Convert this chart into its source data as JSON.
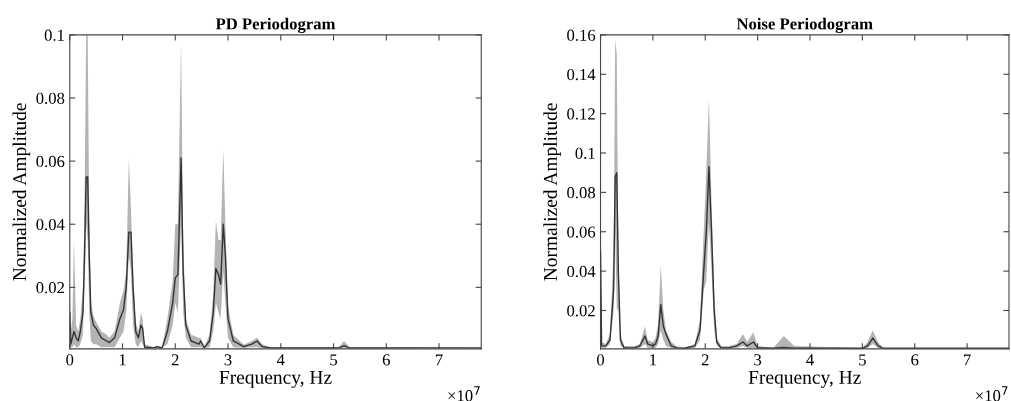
{
  "chart_data": [
    {
      "type": "line",
      "title": "PD Periodogram",
      "xlabel": "Frequency, Hz",
      "ylabel": "Normalized Amplitude",
      "annotations": [
        "×10$^{7}$"
      ],
      "xlim": [
        0,
        7.8
      ],
      "xticks": [
        0,
        1,
        2,
        3,
        4,
        5,
        6,
        7
      ],
      "ylim": [
        0.0005,
        0.1
      ],
      "yticks": [
        0.02,
        0.04,
        0.06,
        0.08,
        0.1
      ],
      "grid": false,
      "series": [
        {
          "color": "#333333",
          "x": [
            0,
            0.02,
            0.05,
            0.08,
            0.12,
            0.16,
            0.2,
            0.25,
            0.28,
            0.31,
            0.34,
            0.37,
            0.4,
            0.45,
            0.5,
            0.6,
            0.7,
            0.75,
            0.85,
            0.95,
            1.02,
            1.07,
            1.12,
            1.16,
            1.2,
            1.25,
            1.3,
            1.35,
            1.38,
            1.42,
            1.6,
            1.65,
            1.75,
            1.85,
            1.95,
            2.0,
            2.05,
            2.11,
            2.15,
            2.2,
            2.3,
            2.45,
            2.48,
            2.55,
            2.65,
            2.72,
            2.77,
            2.82,
            2.86,
            2.91,
            2.95,
            3.0,
            3.1,
            3.3,
            3.45,
            3.55,
            3.65,
            3.8,
            5.1,
            5.2,
            5.3,
            7.8
          ],
          "values": [
            0.012,
            0.002,
            0.004,
            0.006,
            0.004,
            0.003,
            0.006,
            0.012,
            0.03,
            0.055,
            0.055,
            0.03,
            0.012,
            0.008,
            0.007,
            0.004,
            0.003,
            0.0025,
            0.004,
            0.01,
            0.013,
            0.02,
            0.0375,
            0.0375,
            0.02,
            0.006,
            0.004,
            0.008,
            0.007,
            0.001,
            0.0008,
            0.0012,
            0.0008,
            0.006,
            0.015,
            0.023,
            0.024,
            0.061,
            0.025,
            0.008,
            0.003,
            0.002,
            0.003,
            0.0009,
            0.003,
            0.012,
            0.026,
            0.024,
            0.021,
            0.04,
            0.03,
            0.01,
            0.003,
            0.0012,
            0.002,
            0.003,
            0.0012,
            0.0008,
            0.0008,
            0.0015,
            0.0008,
            0.0008
          ],
          "lower": [
            0.001,
            0.001,
            0.001,
            0.002,
            0.001,
            0.001,
            0.002,
            0.005,
            0.02,
            0.04,
            0.035,
            0.012,
            0.003,
            0.002,
            0.002,
            0.001,
            0.001,
            0.001,
            0.001,
            0.004,
            0.006,
            0.012,
            0.03,
            0.025,
            0.008,
            0.002,
            0.001,
            0.003,
            0.002,
            0.0008,
            0.0008,
            0.0008,
            0.0008,
            0.002,
            0.008,
            0.015,
            0.012,
            0.04,
            0.012,
            0.004,
            0.001,
            0.001,
            0.001,
            0.0008,
            0.001,
            0.006,
            0.015,
            0.012,
            0.01,
            0.025,
            0.015,
            0.004,
            0.001,
            0.0008,
            0.001,
            0.001,
            0.0008,
            0.0008,
            0.0008,
            0.0008,
            0.0008,
            0.0008
          ],
          "upper": [
            0.024,
            0.006,
            0.01,
            0.035,
            0.008,
            0.006,
            0.01,
            0.02,
            0.045,
            0.1,
            0.1,
            0.04,
            0.015,
            0.011,
            0.009,
            0.006,
            0.005,
            0.004,
            0.006,
            0.015,
            0.019,
            0.025,
            0.061,
            0.045,
            0.025,
            0.009,
            0.006,
            0.012,
            0.01,
            0.002,
            0.001,
            0.0016,
            0.001,
            0.01,
            0.022,
            0.04,
            0.04,
            0.098,
            0.035,
            0.01,
            0.005,
            0.004,
            0.004,
            0.0012,
            0.005,
            0.018,
            0.041,
            0.035,
            0.035,
            0.064,
            0.04,
            0.014,
            0.005,
            0.0018,
            0.003,
            0.004,
            0.002,
            0.001,
            0.001,
            0.003,
            0.001,
            0.0008
          ]
        }
      ]
    },
    {
      "type": "line",
      "title": "Noise Periodogram",
      "xlabel": "Frequency, Hz",
      "ylabel": "Normalized Amplitude",
      "annotations": [
        "×10$^{7}$"
      ],
      "xlim": [
        0,
        7.8
      ],
      "xticks": [
        0,
        1,
        2,
        3,
        4,
        5,
        6,
        7
      ],
      "ylim": [
        0.0005,
        0.16
      ],
      "yticks": [
        0.02,
        0.04,
        0.06,
        0.08,
        0.1,
        0.12,
        0.14,
        0.16
      ],
      "grid": false,
      "series": [
        {
          "color": "#333333",
          "x": [
            0,
            0.02,
            0.1,
            0.18,
            0.25,
            0.28,
            0.31,
            0.34,
            0.38,
            0.45,
            0.65,
            0.75,
            0.85,
            0.9,
            1.0,
            1.05,
            1.1,
            1.15,
            1.2,
            1.25,
            1.35,
            1.45,
            1.6,
            1.8,
            1.9,
            1.97,
            2.02,
            2.07,
            2.12,
            2.17,
            2.22,
            2.3,
            2.45,
            2.6,
            2.72,
            2.8,
            2.92,
            3.0,
            3.3,
            3.5,
            3.7,
            5.0,
            5.1,
            5.2,
            5.3,
            5.4,
            7.8
          ],
          "values": [
            0.05,
            0.002,
            0.002,
            0.005,
            0.03,
            0.088,
            0.09,
            0.04,
            0.005,
            0.001,
            0.001,
            0.002,
            0.007,
            0.003,
            0.002,
            0.003,
            0.007,
            0.023,
            0.012,
            0.008,
            0.002,
            0.001,
            0.0008,
            0.002,
            0.01,
            0.04,
            0.06,
            0.093,
            0.06,
            0.02,
            0.004,
            0.001,
            0.001,
            0.002,
            0.004,
            0.002,
            0.004,
            0.001,
            0.0008,
            0.0012,
            0.0008,
            0.0008,
            0.002,
            0.006,
            0.002,
            0.0008,
            0.0008
          ],
          "lower": [
            0.04,
            0.001,
            0.001,
            0.003,
            0.02,
            0.06,
            0.021,
            0.02,
            0.002,
            0.0008,
            0.0008,
            0.001,
            0.003,
            0.001,
            0.001,
            0.001,
            0.003,
            0.01,
            0.005,
            0.002,
            0.001,
            0.0008,
            0.0008,
            0.001,
            0.005,
            0.03,
            0.035,
            0.065,
            0.04,
            0.01,
            0.002,
            0.0008,
            0.0008,
            0.001,
            0.002,
            0.001,
            0.001,
            0.0008,
            0.0008,
            0.0008,
            0.0008,
            0.0008,
            0.001,
            0.003,
            0.001,
            0.0008,
            0.0008
          ],
          "upper": [
            0.055,
            0.004,
            0.003,
            0.008,
            0.05,
            0.158,
            0.15,
            0.05,
            0.008,
            0.002,
            0.002,
            0.003,
            0.012,
            0.005,
            0.004,
            0.006,
            0.013,
            0.043,
            0.02,
            0.01,
            0.004,
            0.002,
            0.001,
            0.003,
            0.015,
            0.06,
            0.09,
            0.128,
            0.075,
            0.03,
            0.006,
            0.002,
            0.002,
            0.003,
            0.008,
            0.004,
            0.009,
            0.002,
            0.001,
            0.007,
            0.002,
            0.001,
            0.004,
            0.01,
            0.004,
            0.001,
            0.0008
          ]
        }
      ]
    }
  ]
}
